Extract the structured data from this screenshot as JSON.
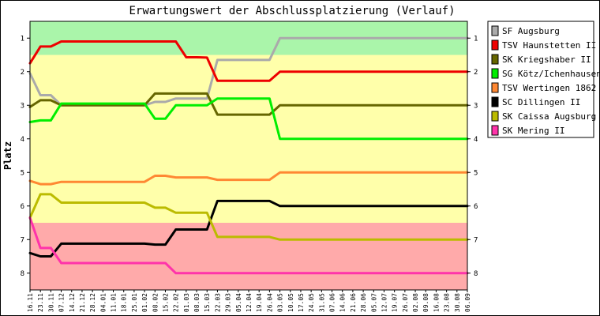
{
  "chart_data": {
    "type": "line",
    "title": "Erwartungswert der Abschlussplatzierung (Verlauf)",
    "ylabel": "Platz",
    "xlabel": "",
    "ylim": [
      0.5,
      8.5
    ],
    "y_inverted": true,
    "y_ticks": [
      "1",
      "2",
      "3",
      "4",
      "5",
      "6",
      "7",
      "8"
    ],
    "grid": false,
    "legend_position": "right",
    "zones": [
      {
        "from": 0.5,
        "to": 1.5,
        "color": "#aaf5aa"
      },
      {
        "from": 1.5,
        "to": 6.5,
        "color": "#ffffaa"
      },
      {
        "from": 6.5,
        "to": 8.5,
        "color": "#ffaaaa"
      }
    ],
    "categories": [
      "16.11",
      "23.11",
      "30.11",
      "07.12",
      "14.12",
      "21.12",
      "28.12",
      "04.01",
      "11.01",
      "18.01",
      "25.01",
      "01.02",
      "08.02",
      "15.02",
      "22.02",
      "01.03",
      "08.03",
      "15.03",
      "22.03",
      "29.03",
      "05.04",
      "12.04",
      "19.04",
      "26.04",
      "03.05",
      "10.05",
      "17.05",
      "24.05",
      "31.05",
      "07.06",
      "14.06",
      "21.06",
      "28.06",
      "05.07",
      "12.07",
      "19.07",
      "26.07",
      "02.08",
      "09.08",
      "16.08",
      "23.08",
      "30.08",
      "06.09"
    ],
    "series": [
      {
        "name": "SF Augsburg",
        "color": "#aaaaaa",
        "values": [
          2.05,
          2.7,
          2.7,
          3.0,
          3.0,
          3.0,
          3.0,
          3.0,
          3.0,
          3.0,
          3.0,
          3.0,
          2.9,
          2.9,
          2.8,
          2.8,
          2.8,
          2.8,
          1.65,
          1.65,
          1.65,
          1.65,
          1.65,
          1.65,
          1.0,
          1.0,
          1.0,
          1.0,
          1.0,
          1.0,
          1.0,
          1.0,
          1.0,
          1.0,
          1.0,
          1.0,
          1.0,
          1.0,
          1.0,
          1.0,
          1.0,
          1.0,
          1.0
        ]
      },
      {
        "name": "TSV Haunstetten II",
        "color": "#ee0000",
        "values": [
          1.75,
          1.25,
          1.25,
          1.1,
          1.1,
          1.1,
          1.1,
          1.1,
          1.1,
          1.1,
          1.1,
          1.1,
          1.1,
          1.1,
          1.1,
          1.57,
          1.57,
          1.58,
          2.27,
          2.27,
          2.27,
          2.27,
          2.27,
          2.27,
          2.0,
          2.0,
          2.0,
          2.0,
          2.0,
          2.0,
          2.0,
          2.0,
          2.0,
          2.0,
          2.0,
          2.0,
          2.0,
          2.0,
          2.0,
          2.0,
          2.0,
          2.0,
          2.0
        ]
      },
      {
        "name": "SK Kriegshaber II",
        "color": "#666600",
        "values": [
          3.05,
          2.85,
          2.85,
          3.0,
          3.0,
          3.0,
          3.0,
          3.0,
          3.0,
          3.0,
          3.0,
          3.0,
          2.65,
          2.65,
          2.65,
          2.65,
          2.65,
          2.65,
          3.28,
          3.28,
          3.28,
          3.28,
          3.28,
          3.28,
          3.0,
          3.0,
          3.0,
          3.0,
          3.0,
          3.0,
          3.0,
          3.0,
          3.0,
          3.0,
          3.0,
          3.0,
          3.0,
          3.0,
          3.0,
          3.0,
          3.0,
          3.0,
          3.0
        ]
      },
      {
        "name": "SG Kötz/Ichenhausen",
        "color": "#00ee00",
        "values": [
          3.5,
          3.45,
          3.45,
          2.95,
          2.95,
          2.95,
          2.95,
          2.95,
          2.95,
          2.95,
          2.95,
          2.95,
          3.4,
          3.4,
          3.0,
          3.0,
          3.0,
          3.0,
          2.8,
          2.8,
          2.8,
          2.8,
          2.8,
          2.8,
          4.0,
          4.0,
          4.0,
          4.0,
          4.0,
          4.0,
          4.0,
          4.0,
          4.0,
          4.0,
          4.0,
          4.0,
          4.0,
          4.0,
          4.0,
          4.0,
          4.0,
          4.0,
          4.0
        ]
      },
      {
        "name": "TSV Wertingen 1862",
        "color": "#ff8833",
        "values": [
          5.25,
          5.35,
          5.35,
          5.28,
          5.28,
          5.28,
          5.28,
          5.28,
          5.28,
          5.28,
          5.28,
          5.28,
          5.1,
          5.1,
          5.15,
          5.15,
          5.15,
          5.15,
          5.22,
          5.22,
          5.22,
          5.22,
          5.22,
          5.22,
          5.0,
          5.0,
          5.0,
          5.0,
          5.0,
          5.0,
          5.0,
          5.0,
          5.0,
          5.0,
          5.0,
          5.0,
          5.0,
          5.0,
          5.0,
          5.0,
          5.0,
          5.0,
          5.0
        ]
      },
      {
        "name": "SC Dillingen II",
        "color": "#000000",
        "values": [
          7.4,
          7.5,
          7.5,
          7.12,
          7.12,
          7.12,
          7.12,
          7.12,
          7.12,
          7.12,
          7.12,
          7.12,
          7.15,
          7.15,
          6.7,
          6.7,
          6.7,
          6.7,
          5.85,
          5.85,
          5.85,
          5.85,
          5.85,
          5.85,
          6.0,
          6.0,
          6.0,
          6.0,
          6.0,
          6.0,
          6.0,
          6.0,
          6.0,
          6.0,
          6.0,
          6.0,
          6.0,
          6.0,
          6.0,
          6.0,
          6.0,
          6.0,
          6.0
        ]
      },
      {
        "name": "SK Caissa Augsburg",
        "color": "#bbbb00",
        "values": [
          6.35,
          5.65,
          5.65,
          5.9,
          5.9,
          5.9,
          5.9,
          5.9,
          5.9,
          5.9,
          5.9,
          5.9,
          6.05,
          6.05,
          6.2,
          6.2,
          6.2,
          6.2,
          6.92,
          6.92,
          6.92,
          6.92,
          6.92,
          6.92,
          7.0,
          7.0,
          7.0,
          7.0,
          7.0,
          7.0,
          7.0,
          7.0,
          7.0,
          7.0,
          7.0,
          7.0,
          7.0,
          7.0,
          7.0,
          7.0,
          7.0,
          7.0,
          7.0
        ]
      },
      {
        "name": "SK Mering II",
        "color": "#ff33aa",
        "values": [
          6.35,
          7.25,
          7.25,
          7.7,
          7.7,
          7.7,
          7.7,
          7.7,
          7.7,
          7.7,
          7.7,
          7.7,
          7.7,
          7.7,
          8.0,
          8.0,
          8.0,
          8.0,
          8.0,
          8.0,
          8.0,
          8.0,
          8.0,
          8.0,
          8.0,
          8.0,
          8.0,
          8.0,
          8.0,
          8.0,
          8.0,
          8.0,
          8.0,
          8.0,
          8.0,
          8.0,
          8.0,
          8.0,
          8.0,
          8.0,
          8.0,
          8.0,
          8.0
        ]
      }
    ]
  }
}
